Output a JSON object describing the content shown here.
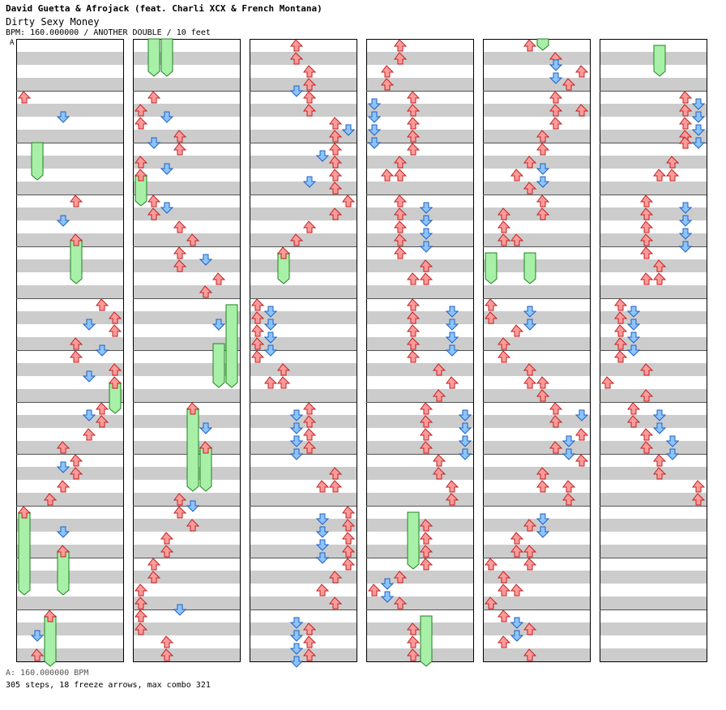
{
  "header": {
    "title": "David Guetta & Afrojack (feat. Charli XCX & French Montana)",
    "song": "Dirty Sexy Money",
    "meta": "BPM: 160.000000 / ANOTHER DOUBLE / 10 feet",
    "bpm_marker": "A"
  },
  "footer": {
    "bpm_line": "A: 160.000000 BPM",
    "stats": "305 steps, 18 freeze arrows, max combo 321"
  },
  "colors": {
    "red_arrow": "#ff8080",
    "blue_arrow": "#70b0ff",
    "freeze": "#a8f0a8",
    "stripe": "#cccccc"
  },
  "chart_data": {
    "type": "step-chart",
    "columns": 6,
    "measures_per_column": 12,
    "lanes": 8
  }
}
